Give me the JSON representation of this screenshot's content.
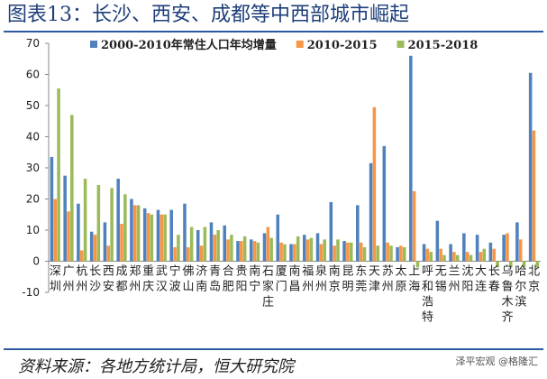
{
  "title": "图表13：长沙、西安、成都等中西部城市崛起",
  "source": "资料来源：各地方统计局，恒大研究院",
  "watermark": "泽平宏观 @格隆汇",
  "colors": {
    "s1": "#4f81bd",
    "s2": "#f79646",
    "s3": "#9bbb59"
  },
  "chart_data": {
    "type": "bar",
    "title": "",
    "xlabel": "",
    "ylabel": "",
    "ylim": [
      -10,
      70
    ],
    "yticks": [
      -10,
      0,
      10,
      20,
      30,
      40,
      50,
      60,
      70
    ],
    "grid": false,
    "legend_position": "top",
    "categories": [
      "深圳",
      "广州",
      "杭州",
      "长沙",
      "西安",
      "成都",
      "郑州",
      "重庆",
      "武汉",
      "宁波",
      "佛山",
      "济南",
      "青岛",
      "合肥",
      "贵阳",
      "南宁",
      "石家庄",
      "厦门",
      "南昌",
      "福州",
      "泉州",
      "南京",
      "昆明",
      "东莞",
      "天津",
      "苏州",
      "太原",
      "上海",
      "呼和浩特",
      "无锡",
      "兰州",
      "沈阳",
      "大连",
      "长春",
      "乌鲁木齐",
      "哈尔滨",
      "北京"
    ],
    "category_labels": [
      [
        "深",
        "圳"
      ],
      [
        "广",
        "州"
      ],
      [
        "杭",
        "州"
      ],
      [
        "长",
        "沙"
      ],
      [
        "西",
        "安"
      ],
      [
        "成",
        "都"
      ],
      [
        "郑",
        "州"
      ],
      [
        "重",
        "庆"
      ],
      [
        "武",
        "汉"
      ],
      [
        "宁",
        "波"
      ],
      [
        "佛",
        "山"
      ],
      [
        "济",
        "南"
      ],
      [
        "青",
        "岛"
      ],
      [
        "合",
        "肥"
      ],
      [
        "贵",
        "阳"
      ],
      [
        "南",
        "宁"
      ],
      [
        "石",
        "家",
        "庄"
      ],
      [
        "厦",
        "门"
      ],
      [
        "南",
        "昌"
      ],
      [
        "福",
        "州"
      ],
      [
        "泉",
        "州"
      ],
      [
        "南",
        "京"
      ],
      [
        "昆",
        "明"
      ],
      [
        "东",
        "莞"
      ],
      [
        "天",
        "津"
      ],
      [
        "苏",
        "州"
      ],
      [
        "太",
        "原"
      ],
      [
        "上",
        "海"
      ],
      [
        "呼",
        "和",
        "浩",
        "特"
      ],
      [
        "无",
        "锡"
      ],
      [
        "兰",
        "州"
      ],
      [
        "沈",
        "阳"
      ],
      [
        "大",
        "连"
      ],
      [
        "长",
        "春"
      ],
      [
        "乌",
        "鲁",
        "木",
        "齐"
      ],
      [
        "哈",
        "尔",
        "滨"
      ],
      [
        "北",
        "京"
      ]
    ],
    "series": [
      {
        "name": "2000-2010年常住人口年均增量",
        "values": [
          33.5,
          27.5,
          18.5,
          9.5,
          12.5,
          26.5,
          20,
          17,
          16.5,
          16.5,
          18.5,
          10,
          12.5,
          11.5,
          6.5,
          7,
          9,
          15,
          5.5,
          8.5,
          9,
          19,
          6.5,
          18,
          31.5,
          37,
          4.5,
          66,
          5.5,
          13,
          5.5,
          9,
          8.5,
          6,
          8.5,
          12.5,
          60.5
        ]
      },
      {
        "name": "2010-2015",
        "values": [
          20,
          16,
          3.5,
          8.5,
          5,
          12,
          18,
          15.5,
          15,
          4.5,
          4.5,
          5,
          8.5,
          7,
          6.5,
          6.5,
          11,
          6,
          5.5,
          7,
          5.5,
          5,
          6,
          6,
          49.5,
          6,
          5,
          22.5,
          4,
          4,
          3,
          3,
          3,
          4,
          9,
          7,
          42
        ]
      },
      {
        "name": "2015-2018",
        "values": [
          55.5,
          47,
          26.5,
          24.5,
          23.5,
          21.5,
          18,
          15,
          15,
          8.5,
          11,
          11,
          10,
          8.5,
          8,
          6,
          7.5,
          5.5,
          8,
          7.5,
          7,
          7,
          6,
          4.5,
          5,
          5,
          4.5,
          -2,
          3,
          2,
          2,
          2,
          4,
          -2,
          -2,
          -2,
          -2
        ]
      }
    ]
  }
}
